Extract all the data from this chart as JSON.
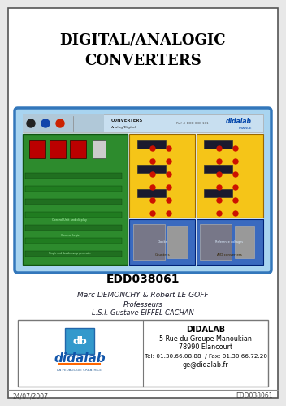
{
  "title_line1": "DIGITAL/ANALOGIC",
  "title_line2": "CONVERTERS",
  "ref_code": "EDD038061",
  "author_line1": "Marc DEMONCHY & Robert LE GOFF",
  "author_line2": "Professeurs",
  "author_line3": "L.S.I. Gustave EIFFEL-CACHAN",
  "company_name": "DIDALAB",
  "company_addr1": "5 Rue du Groupe Manoukian",
  "company_addr2": "78990 Elancourt",
  "company_addr3": "Tel: 01.30.66.08.88  / Fax: 01.30.66.72.20",
  "company_addr4": "ge@didalab.fr",
  "footer_left": "24/07/2007",
  "footer_right": "EDD038061",
  "bg_color": "#e8e8e8",
  "page_bg": "#ffffff",
  "border_color": "#555555",
  "title_color": "#000000",
  "text_color": "#222222",
  "image_bg": "#a8d4f0",
  "image_border": "#4488cc",
  "green_board": "#2d8b2d",
  "yellow_board": "#f5c518",
  "blue_board": "#3a6abf",
  "header_strip": "#c8dff0"
}
